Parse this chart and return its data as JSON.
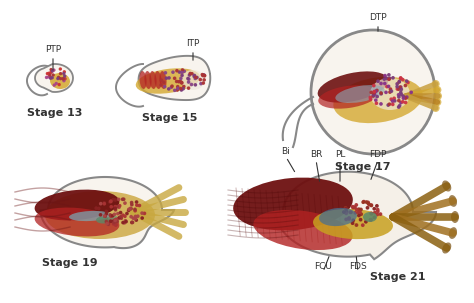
{
  "background_color": "#ffffff",
  "labels": {
    "ptp": "PTP",
    "itp": "ITP",
    "dtp": "DTP",
    "bi": "Bi",
    "br": "BR",
    "pl": "PL",
    "fdp": "FDP",
    "fcu": "FCU",
    "fds": "FDS",
    "stage13": "Stage 13",
    "stage15": "Stage 15",
    "stage17": "Stage 17",
    "stage19": "Stage 19",
    "stage21": "Stage 21"
  },
  "colors": {
    "outline": "#888888",
    "muscle_red": "#8B1A1A",
    "muscle_red_bright": "#B22222",
    "yellow_orange": "#D4A017",
    "orange_gold": "#C8961A",
    "light_tan": "#E8D5A0",
    "purple_dot": "#8B4B8B",
    "red_dot": "#C04040",
    "dark_red": "#6E1010",
    "light_blue": "#7090B0",
    "teal_green": "#5A8A6A",
    "gray_outline": "#888888",
    "gray_outline2": "#AAAAAA",
    "text_color": "#333333",
    "white_cream": "#F8F4EE",
    "dot_red": "#AA3333",
    "dot_purple": "#7B3B7B"
  },
  "fontsize_stage": 8,
  "fontsize_label": 6.5,
  "figsize": [
    4.74,
    3.03
  ],
  "dpi": 100
}
